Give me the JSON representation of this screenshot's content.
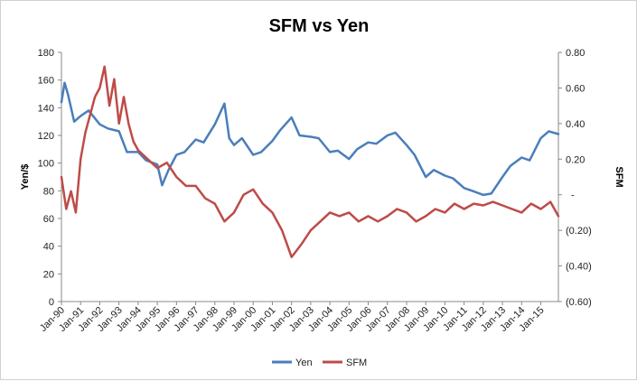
{
  "chart_data": {
    "type": "line",
    "title": "SFM vs Yen",
    "ylabel": "Yen/$",
    "y2label": "SFM",
    "xlabel": "",
    "ylim": [
      0,
      180
    ],
    "y2lim": [
      -0.6,
      0.8
    ],
    "y_ticks": [
      "0",
      "20",
      "40",
      "60",
      "80",
      "100",
      "120",
      "140",
      "160",
      "180"
    ],
    "y2_ticks": [
      "(0.60)",
      "(0.40)",
      "(0.20)",
      "-",
      "0.20",
      "0.40",
      "0.60",
      "0.80"
    ],
    "x_ticks": [
      "Jan-90",
      "Jan-91",
      "Jan-92",
      "Jan-93",
      "Jan-94",
      "Jan-95",
      "Jan-96",
      "Jan-97",
      "Jan-98",
      "Jan-99",
      "Jan-00",
      "Jan-01",
      "Jan-02",
      "Jan-03",
      "Jan-04",
      "Jan-05",
      "Jan-06",
      "Jan-07",
      "Jan-08",
      "Jan-09",
      "Jan-10",
      "Jan-11",
      "Jan-12",
      "Jan-13",
      "Jan-14",
      "Jan-15"
    ],
    "x_range": [
      "Jan-90",
      "Dec-15"
    ],
    "grid": false,
    "legend_position": "bottom",
    "series": [
      {
        "name": "Yen",
        "axis": "left",
        "color": "#4a7ebb",
        "x": [
          "Jan-90",
          "Mar-90",
          "May-90",
          "Jul-90",
          "Sep-90",
          "Nov-90",
          "Jan-91",
          "Jun-91",
          "Jan-92",
          "Jun-92",
          "Jan-93",
          "Jun-93",
          "Jan-94",
          "Jun-94",
          "Jan-95",
          "Apr-95",
          "Aug-95",
          "Jan-96",
          "Jun-96",
          "Jan-97",
          "Jun-97",
          "Jan-98",
          "Jul-98",
          "Oct-98",
          "Jan-99",
          "Jun-99",
          "Jan-00",
          "Jun-00",
          "Jan-01",
          "Jun-01",
          "Jan-02",
          "Jun-02",
          "Jan-03",
          "Jun-03",
          "Jan-04",
          "Jun-04",
          "Jan-05",
          "Jun-05",
          "Jan-06",
          "Jun-06",
          "Jan-07",
          "Jun-07",
          "Jan-08",
          "Jun-08",
          "Jan-09",
          "Jun-09",
          "Jan-10",
          "Jun-10",
          "Jan-11",
          "Jun-11",
          "Jan-12",
          "Jun-12",
          "Jan-13",
          "Jun-13",
          "Jan-14",
          "Jun-14",
          "Jan-15",
          "Jun-15",
          "Dec-15"
        ],
        "values": [
          144,
          158,
          150,
          140,
          130,
          132,
          134,
          138,
          128,
          125,
          123,
          108,
          108,
          102,
          99,
          84,
          95,
          106,
          108,
          117,
          115,
          128,
          143,
          118,
          113,
          118,
          106,
          108,
          116,
          124,
          133,
          120,
          119,
          118,
          108,
          109,
          103,
          110,
          115,
          114,
          120,
          122,
          113,
          106,
          90,
          95,
          91,
          89,
          82,
          80,
          77,
          78,
          90,
          98,
          104,
          102,
          118,
          123,
          121
        ]
      },
      {
        "name": "SFM",
        "axis": "right",
        "color": "#be4b48",
        "x": [
          "Jan-90",
          "Apr-90",
          "Jul-90",
          "Oct-90",
          "Jan-91",
          "Apr-91",
          "Jul-91",
          "Oct-91",
          "Jan-92",
          "Apr-92",
          "Jul-92",
          "Oct-92",
          "Jan-93",
          "Apr-93",
          "Jul-93",
          "Oct-93",
          "Jan-94",
          "Jul-94",
          "Jan-95",
          "Jul-95",
          "Jan-96",
          "Jul-96",
          "Jan-97",
          "Jul-97",
          "Jan-98",
          "Jul-98",
          "Jan-99",
          "Jul-99",
          "Jan-00",
          "Jul-00",
          "Jan-01",
          "Jul-01",
          "Jan-02",
          "Jul-02",
          "Jan-03",
          "Jul-03",
          "Jan-04",
          "Jul-04",
          "Jan-05",
          "Jul-05",
          "Jan-06",
          "Jul-06",
          "Jan-07",
          "Jul-07",
          "Jan-08",
          "Jul-08",
          "Jan-09",
          "Jul-09",
          "Jan-10",
          "Jul-10",
          "Jan-11",
          "Jul-11",
          "Jan-12",
          "Jul-12",
          "Jan-13",
          "Jul-13",
          "Jan-14",
          "Jul-14",
          "Jan-15",
          "Jul-15",
          "Dec-15"
        ],
        "values": [
          0.1,
          -0.08,
          0.02,
          -0.1,
          0.2,
          0.35,
          0.45,
          0.55,
          0.6,
          0.72,
          0.5,
          0.65,
          0.4,
          0.55,
          0.4,
          0.3,
          0.25,
          0.2,
          0.15,
          0.18,
          0.1,
          0.05,
          0.05,
          -0.02,
          -0.05,
          -0.15,
          -0.1,
          0.0,
          0.03,
          -0.05,
          -0.1,
          -0.2,
          -0.35,
          -0.28,
          -0.2,
          -0.15,
          -0.1,
          -0.12,
          -0.1,
          -0.15,
          -0.12,
          -0.15,
          -0.12,
          -0.08,
          -0.1,
          -0.15,
          -0.12,
          -0.08,
          -0.1,
          -0.05,
          -0.08,
          -0.05,
          -0.06,
          -0.04,
          -0.06,
          -0.08,
          -0.1,
          -0.05,
          -0.08,
          -0.04,
          -0.12
        ]
      }
    ]
  }
}
